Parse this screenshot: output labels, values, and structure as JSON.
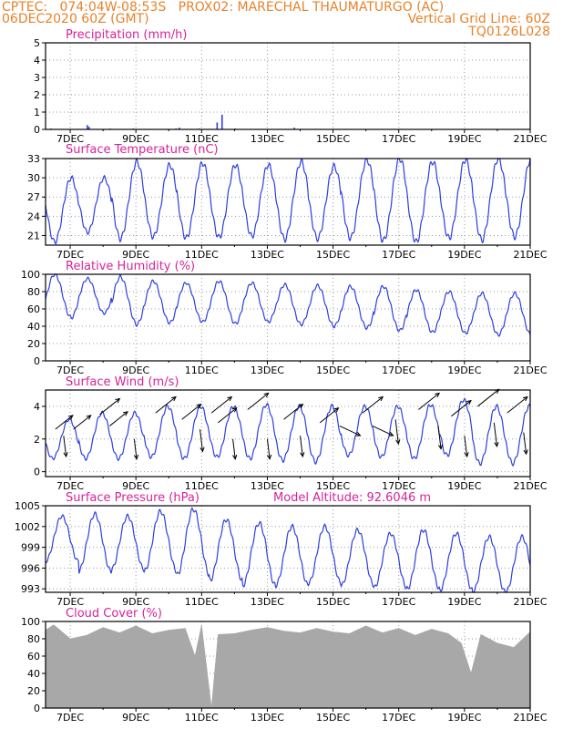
{
  "header": {
    "line1_left": "CPTEC:   074:04W-08:53S   PROX02: MARECHAL THAUMATURGO (AC)",
    "line2_left": "06DEC2020 60Z (GMT)",
    "line2_right": "Vertical Grid Line: 60Z",
    "line3_right": "TQ0126L028",
    "model_altitude": "Model Altitude: 92.6046 m"
  },
  "colors": {
    "header": "#e8822a",
    "title": "#d6239a",
    "series": "#2c3fe0",
    "cloud": "#a8a8a8",
    "frame": "#000000",
    "grid": "#9a9a9a",
    "wind_vector": "#000000"
  },
  "chart_data": [
    {
      "type": "bar",
      "title": "Precipitation (mm/h)",
      "x_tick_labels": [
        "7DEC",
        "9DEC",
        "11DEC",
        "13DEC",
        "15DEC",
        "17DEC",
        "19DEC",
        "21DEC"
      ],
      "x_range_days": [
        6.25,
        21.0
      ],
      "ylim": [
        0,
        5
      ],
      "y_ticks": [
        0,
        1,
        2,
        3,
        4,
        5
      ],
      "series": [
        {
          "x_days": [
            6.4,
            7.5,
            7.55,
            8.2,
            8.9,
            10.2,
            10.3,
            10.9,
            11.45,
            11.6,
            12.0,
            13.8,
            15.0,
            17.0,
            20.0
          ],
          "values": [
            0.05,
            0.25,
            0.15,
            0.05,
            0.05,
            0.05,
            0.1,
            0.05,
            0.4,
            0.85,
            0.05,
            0.1,
            0.03,
            0.02,
            0.02
          ]
        }
      ],
      "grid": true
    },
    {
      "type": "line",
      "title": "Surface Temperature (nC)",
      "x_tick_labels": [
        "7DEC",
        "9DEC",
        "11DEC",
        "13DEC",
        "15DEC",
        "17DEC",
        "19DEC",
        "21DEC"
      ],
      "x_range_days": [
        6.25,
        21.0
      ],
      "ylim": [
        19.5,
        33
      ],
      "y_ticks": [
        21,
        24,
        27,
        30,
        33
      ],
      "series": [
        {
          "daily_min": [
            20.0,
            21.5,
            20.5,
            20.8,
            20.6,
            20.7,
            20.9,
            20.4,
            20.5,
            20.6,
            20.2,
            20.0,
            20.6,
            20.3,
            20.8
          ],
          "daily_max": [
            30.0,
            30.0,
            32.5,
            32.0,
            32.3,
            32.0,
            32.0,
            32.5,
            31.8,
            32.8,
            33.0,
            32.5,
            32.8,
            33.0,
            33.0
          ]
        }
      ],
      "grid": true
    },
    {
      "type": "line",
      "title": "Relative Humidity (%)",
      "x_tick_labels": [
        "7DEC",
        "9DEC",
        "11DEC",
        "13DEC",
        "15DEC",
        "17DEC",
        "19DEC",
        "21DEC"
      ],
      "x_range_days": [
        6.25,
        21.0
      ],
      "ylim": [
        0,
        100
      ],
      "y_ticks": [
        0,
        20,
        40,
        60,
        80,
        100
      ],
      "series": [
        {
          "daily_min": [
            50,
            55,
            42,
            44,
            45,
            43,
            45,
            42,
            40,
            38,
            35,
            33,
            32,
            30,
            30
          ],
          "daily_max": [
            100,
            95,
            97,
            92,
            90,
            92,
            90,
            88,
            87,
            86,
            86,
            82,
            80,
            78,
            78
          ]
        }
      ],
      "grid": true
    },
    {
      "type": "line",
      "title": "Surface Wind (m/s)",
      "x_tick_labels": [
        "7DEC",
        "9DEC",
        "11DEC",
        "13DEC",
        "15DEC",
        "17DEC",
        "19DEC",
        "21DEC"
      ],
      "x_range_days": [
        6.25,
        21.0
      ],
      "ylim": [
        -0.3,
        5
      ],
      "y_ticks": [
        0,
        2,
        4
      ],
      "series": [
        {
          "daily_min": [
            0.8,
            0.8,
            0.8,
            0.9,
            0.8,
            0.9,
            0.8,
            0.7,
            0.6,
            1.0,
            0.9,
            0.8,
            1.0,
            0.5,
            0.5
          ],
          "daily_max": [
            3.2,
            3.6,
            3.6,
            4.0,
            4.0,
            4.0,
            4.1,
            4.0,
            4.0,
            4.0,
            4.0,
            4.1,
            4.4,
            4.0,
            4.0
          ]
        }
      ],
      "wind_vectors": [
        {
          "x_days": 6.55,
          "speed": 2.6,
          "dir": "up-right"
        },
        {
          "x_days": 6.8,
          "speed": 2.2,
          "dir": "down"
        },
        {
          "x_days": 7.1,
          "speed": 2.6,
          "dir": "up-right"
        },
        {
          "x_days": 7.9,
          "speed": 3.5,
          "dir": "up-right"
        },
        {
          "x_days": 8.2,
          "speed": 2.8,
          "dir": "up-right"
        },
        {
          "x_days": 8.95,
          "speed": 2.0,
          "dir": "down"
        },
        {
          "x_days": 9.6,
          "speed": 3.6,
          "dir": "up-right"
        },
        {
          "x_days": 10.4,
          "speed": 3.2,
          "dir": "up-right"
        },
        {
          "x_days": 10.95,
          "speed": 2.6,
          "dir": "down"
        },
        {
          "x_days": 11.3,
          "speed": 3.6,
          "dir": "up-right"
        },
        {
          "x_days": 11.5,
          "speed": 3.0,
          "dir": "up-right"
        },
        {
          "x_days": 11.95,
          "speed": 2.0,
          "dir": "down"
        },
        {
          "x_days": 12.4,
          "speed": 3.8,
          "dir": "up-right"
        },
        {
          "x_days": 13.0,
          "speed": 2.0,
          "dir": "down"
        },
        {
          "x_days": 13.5,
          "speed": 3.2,
          "dir": "up-right"
        },
        {
          "x_days": 14.0,
          "speed": 2.2,
          "dir": "down"
        },
        {
          "x_days": 14.6,
          "speed": 3.0,
          "dir": "up-right"
        },
        {
          "x_days": 15.2,
          "speed": 2.8,
          "dir": "down-right"
        },
        {
          "x_days": 15.9,
          "speed": 3.6,
          "dir": "up-right"
        },
        {
          "x_days": 16.2,
          "speed": 2.8,
          "dir": "down-right"
        },
        {
          "x_days": 16.9,
          "speed": 3.2,
          "dir": "down"
        },
        {
          "x_days": 17.6,
          "speed": 3.8,
          "dir": "up-right"
        },
        {
          "x_days": 18.2,
          "speed": 2.8,
          "dir": "down"
        },
        {
          "x_days": 18.6,
          "speed": 3.4,
          "dir": "up-right"
        },
        {
          "x_days": 19.0,
          "speed": 2.2,
          "dir": "down"
        },
        {
          "x_days": 19.4,
          "speed": 4.0,
          "dir": "up-right"
        },
        {
          "x_days": 19.9,
          "speed": 3.0,
          "dir": "down"
        },
        {
          "x_days": 20.3,
          "speed": 3.6,
          "dir": "up-right"
        },
        {
          "x_days": 20.8,
          "speed": 2.4,
          "dir": "down"
        }
      ],
      "grid": true
    },
    {
      "type": "line",
      "title": "Surface Pressure (hPa)",
      "x_tick_labels": [
        "7DEC",
        "9DEC",
        "11DEC",
        "13DEC",
        "15DEC",
        "17DEC",
        "19DEC",
        "21DEC"
      ],
      "x_range_days": [
        6.25,
        21.0
      ],
      "ylim": [
        992.5,
        1005
      ],
      "y_ticks": [
        993,
        996,
        999,
        1002,
        1005
      ],
      "series": [
        {
          "daily_min": [
            997.0,
            995.5,
            995.8,
            995.5,
            995.0,
            994.2,
            993.5,
            993.5,
            993.8,
            993.5,
            993.2,
            993.0,
            992.8,
            992.5,
            992.5
          ],
          "daily_max": [
            1003.5,
            1003.8,
            1003.5,
            1004.2,
            1004.5,
            1003.0,
            1002.5,
            1002.0,
            1002.0,
            1001.5,
            1001.0,
            1001.5,
            1001.0,
            1000.5,
            1000.5
          ]
        }
      ],
      "grid": true
    },
    {
      "type": "area",
      "title": "Cloud Cover (%)",
      "x_tick_labels": [
        "7DEC",
        "9DEC",
        "11DEC",
        "13DEC",
        "15DEC",
        "17DEC",
        "19DEC",
        "21DEC"
      ],
      "x_range_days": [
        6.25,
        21.0
      ],
      "ylim": [
        0,
        100
      ],
      "y_ticks": [
        0,
        20,
        40,
        60,
        80,
        100
      ],
      "series": [
        {
          "x_days": [
            6.25,
            6.5,
            7.0,
            7.5,
            8.0,
            8.5,
            9.0,
            9.5,
            10.0,
            10.5,
            10.8,
            11.0,
            11.3,
            11.5,
            12.0,
            12.5,
            13.0,
            13.5,
            14.0,
            14.5,
            15.0,
            15.5,
            16.0,
            16.5,
            17.0,
            17.5,
            18.0,
            18.5,
            18.9,
            19.2,
            19.5,
            20.0,
            20.5,
            21.0
          ],
          "values": [
            90,
            96,
            80,
            84,
            93,
            87,
            95,
            86,
            90,
            92,
            60,
            96,
            0,
            85,
            86,
            90,
            93,
            89,
            87,
            92,
            88,
            86,
            95,
            87,
            92,
            84,
            91,
            86,
            75,
            40,
            85,
            75,
            70,
            88
          ]
        }
      ],
      "grid": true
    }
  ]
}
